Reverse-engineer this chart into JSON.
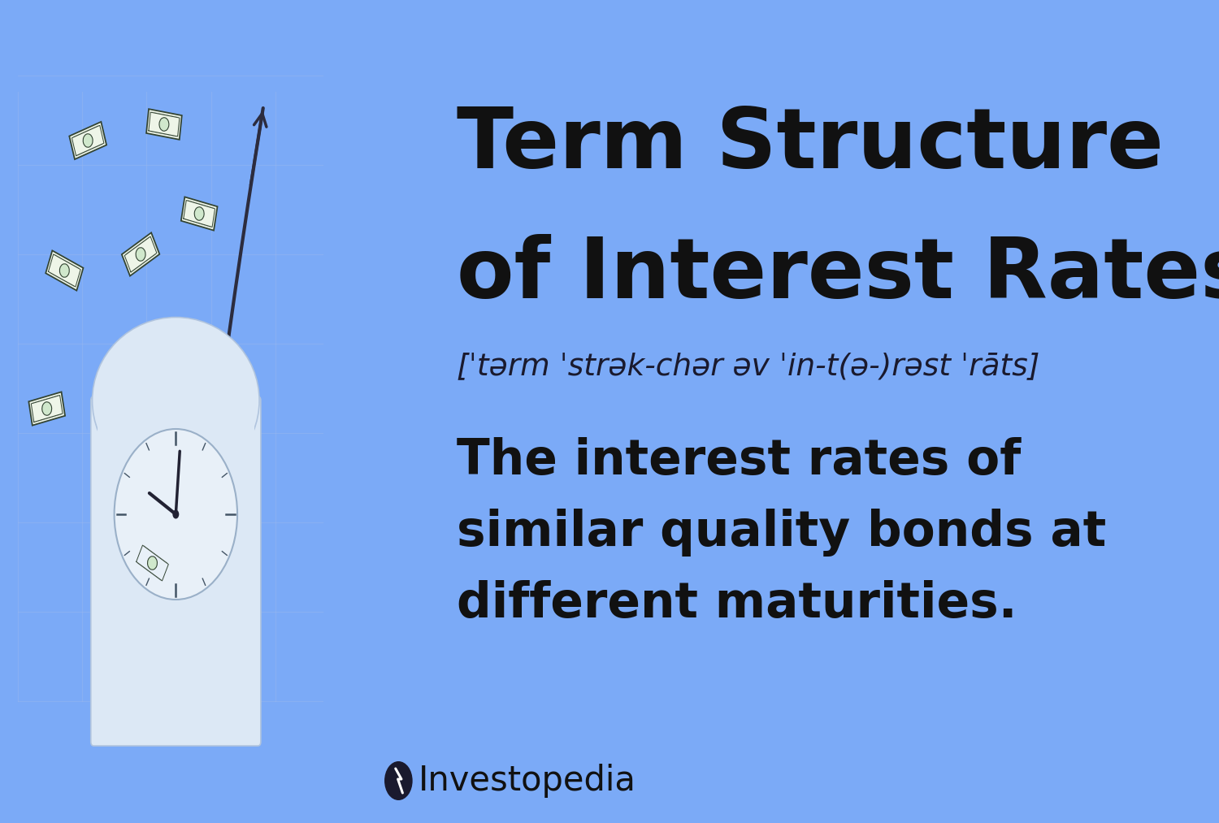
{
  "background_color": "#7BAAF7",
  "title_line1": "Term Structure",
  "title_line2": "of Interest Rates",
  "pronunciation": "[ˈtərm ˈstrək-chər əv ˈin-t(ə-)rəst ˈrāts]",
  "definition": "The interest rates of\nsimilar quality bonds at\ndifferent maturities.",
  "brand": "Investopedia",
  "title_color": "#111111",
  "pronunciation_color": "#1a1a2e",
  "definition_color": "#111111",
  "brand_color": "#111111",
  "clock_body_color": "#dce8f5",
  "clock_face_color": "#e8f0f8",
  "arrow_color": "#2c2c3e",
  "grid_color": "#9ab8f0"
}
